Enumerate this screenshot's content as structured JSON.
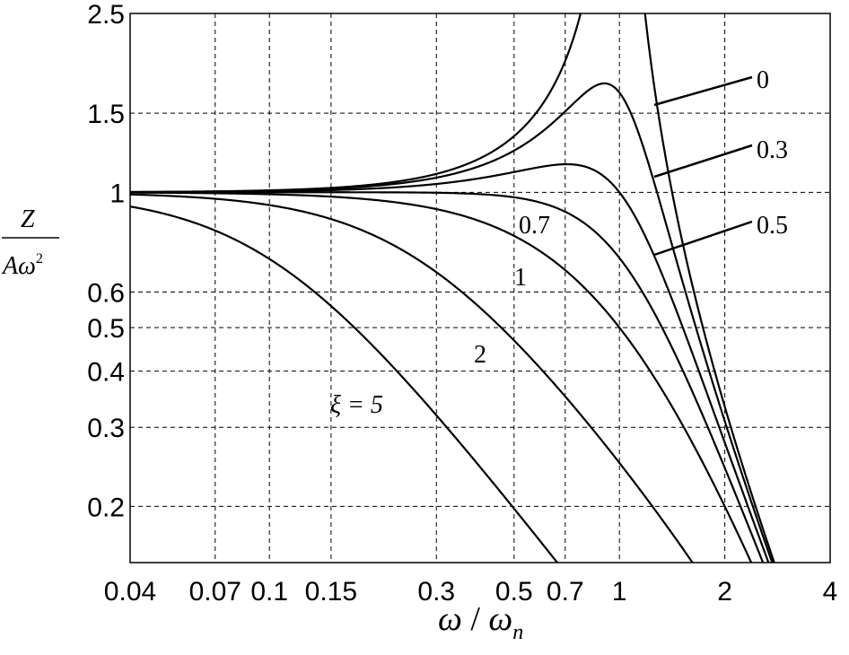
{
  "chart_data": {
    "type": "line",
    "xscale": "log",
    "yscale": "log",
    "xlim": [
      0.04,
      4
    ],
    "ylim": [
      0.15,
      2.5
    ],
    "grid": true,
    "xticks": [
      {
        "v": 0.04,
        "label": "0.04"
      },
      {
        "v": 0.07,
        "label": "0.07"
      },
      {
        "v": 0.1,
        "label": "0.1"
      },
      {
        "v": 0.15,
        "label": "0.15"
      },
      {
        "v": 0.3,
        "label": "0.3"
      },
      {
        "v": 0.5,
        "label": "0.5"
      },
      {
        "v": 0.7,
        "label": "0.7"
      },
      {
        "v": 1,
        "label": "1"
      },
      {
        "v": 2,
        "label": "2"
      },
      {
        "v": 4,
        "label": "4"
      }
    ],
    "yticks": [
      {
        "v": 0.2,
        "label": "0.2"
      },
      {
        "v": 0.3,
        "label": "0.3"
      },
      {
        "v": 0.4,
        "label": "0.4"
      },
      {
        "v": 0.5,
        "label": "0.5"
      },
      {
        "v": 0.6,
        "label": "0.6"
      },
      {
        "v": 1,
        "label": "1"
      },
      {
        "v": 1.5,
        "label": "1.5"
      },
      {
        "v": 2.5,
        "label": "2.5"
      }
    ],
    "xlabel": {
      "omega": "ω",
      "slash": " / ",
      "omega_n": "ω",
      "sub": "n"
    },
    "ylabel": {
      "numerator": "Z",
      "denominator_a": "Aω",
      "denominator_sup": "2"
    },
    "series": [
      {
        "name": "0",
        "xi": 0
      },
      {
        "name": "0.3",
        "xi": 0.3
      },
      {
        "name": "0.5",
        "xi": 0.5
      },
      {
        "name": "0.7",
        "xi": 0.7
      },
      {
        "name": "1",
        "xi": 1
      },
      {
        "name": "2",
        "xi": 2
      },
      {
        "name": "ξ = 5",
        "xi": 5
      }
    ],
    "annotations": {
      "lbl_0": "0",
      "lbl_03": "0.3",
      "lbl_05": "0.5",
      "lbl_07": "0.7",
      "lbl_1": "1",
      "lbl_2": "2",
      "lbl_5": "ξ = 5"
    }
  }
}
